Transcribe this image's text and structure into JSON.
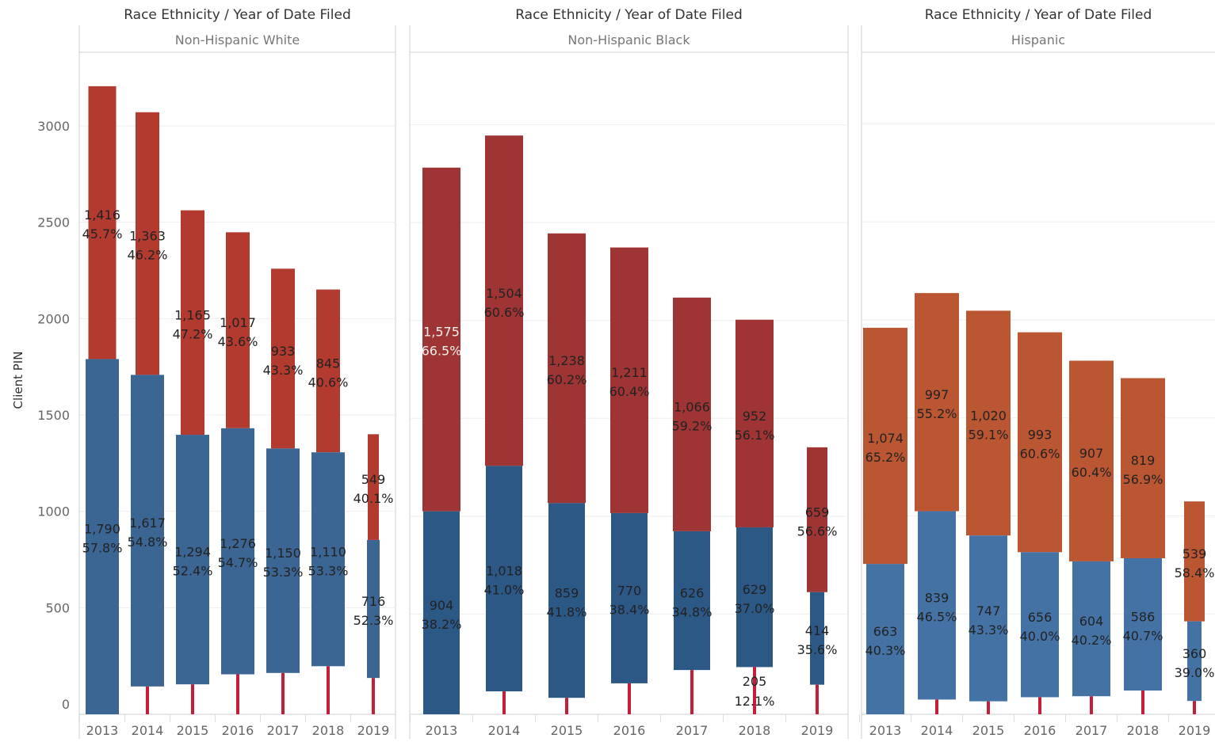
{
  "chart_data": {
    "type": "bar",
    "chart_style": "stacked-overlay by year, faceted by race ethnicity",
    "ylabel": "Client PIN",
    "ylim": [
      0,
      3350
    ],
    "yticks": [
      0,
      500,
      1000,
      1500,
      2000,
      2500,
      3000
    ],
    "grid": true,
    "categories": [
      "2013",
      "2014",
      "2015",
      "2016",
      "2017",
      "2018",
      "2019"
    ],
    "colors": {
      "Non-Hispanic White": {
        "top": "#b23a2f",
        "bottom": "#3b6592"
      },
      "Non-Hispanic Black": {
        "top": "#9e3433",
        "bottom": "#2c5886"
      },
      "Hispanic": {
        "top": "#bb5633",
        "bottom": "#4472a4"
      },
      "accent": "#c41e3a"
    },
    "panels": [
      {
        "header": "Race Ethnicity  /  Year of Date Filed",
        "group": "Non-Hispanic White",
        "top_segment": {
          "low": [
            1790,
            1708,
            1397,
            1431,
            1326,
            1306,
            851
          ],
          "high": [
            3206,
            3071,
            2562,
            2448,
            2259,
            2151,
            1400
          ],
          "labels": [
            "1,416",
            "1,363",
            "1,165",
            "1,017",
            "933",
            "845",
            "549"
          ],
          "pct": [
            "45.7%",
            "46.2%",
            "47.2%",
            "43.6%",
            "43.3%",
            "40.6%",
            "40.1%"
          ]
        },
        "bottom_segment": {
          "low": [
            0,
            91,
            102,
            154,
            161,
            196,
            135
          ],
          "high": [
            1790,
            1708,
            1397,
            1431,
            1326,
            1306,
            851
          ],
          "labels": [
            "1,790",
            "1,617",
            "1,294",
            "1,276",
            "1,150",
            "1,110",
            "716"
          ],
          "pct": [
            "57.8%",
            "54.8%",
            "52.4%",
            "54.7%",
            "53.3%",
            "53.3%",
            "52.3%"
          ]
        },
        "accent_segment": {
          "high": [
            0,
            91,
            102,
            154,
            161,
            196,
            135
          ]
        }
      },
      {
        "header": "Race Ethnicity  /  Year of Date Filed",
        "group": "Non-Hispanic Black",
        "top_segment": {
          "low": [
            1025,
            1257,
            1067,
            1016,
            923,
            943,
            612
          ],
          "high": [
            2781,
            2945,
            2445,
            2373,
            2117,
            2004,
            1352
          ],
          "labels": [
            "1,575",
            "1,504",
            "1,238",
            "1,211",
            "1,066",
            "952",
            "659"
          ],
          "pct": [
            "66.5%",
            "60.6%",
            "60.2%",
            "60.4%",
            "59.2%",
            "56.1%",
            "56.6%"
          ]
        },
        "bottom_segment": {
          "low": [
            0,
            105,
            72,
            146,
            214,
            229,
            139
          ],
          "high": [
            1025,
            1257,
            1067,
            1016,
            923,
            943,
            612
          ],
          "labels": [
            "904",
            "1,018",
            "859",
            "770",
            "626",
            "629",
            "414"
          ],
          "pct": [
            "38.2%",
            "41.0%",
            "41.8%",
            "38.4%",
            "34.8%",
            "37.0%",
            "35.6%"
          ]
        },
        "accent_segment": {
          "high": [
            0,
            105,
            72,
            146,
            214,
            229,
            139
          ]
        },
        "extra_labels": [
          {
            "category": "2018",
            "value": "205",
            "pct": "12.1%"
          }
        ]
      },
      {
        "header": "Race Ethnicity  /  Year of Date Filed",
        "group": "Hispanic",
        "top_segment": {
          "low": [
            755,
            1024,
            900,
            815,
            768,
            784,
            462
          ],
          "high": [
            1960,
            2137,
            2047,
            1937,
            1792,
            1703,
            1074
          ],
          "labels": [
            "1,074",
            "997",
            "1,020",
            "993",
            "907",
            "819",
            "539"
          ],
          "pct": [
            "65.2%",
            "55.2%",
            "59.1%",
            "60.6%",
            "60.4%",
            "56.9%",
            "58.4%"
          ]
        },
        "bottom_segment": {
          "low": [
            0,
            63,
            54,
            75,
            80,
            109,
            56
          ],
          "high": [
            755,
            1024,
            900,
            815,
            768,
            784,
            462
          ],
          "labels": [
            "663",
            "839",
            "747",
            "656",
            "604",
            "586",
            "360"
          ],
          "pct": [
            "40.3%",
            "46.5%",
            "43.3%",
            "40.0%",
            "40.2%",
            "40.7%",
            "39.0%"
          ]
        },
        "accent_segment": {
          "high": [
            0,
            63,
            54,
            75,
            80,
            109,
            56
          ]
        }
      }
    ]
  }
}
